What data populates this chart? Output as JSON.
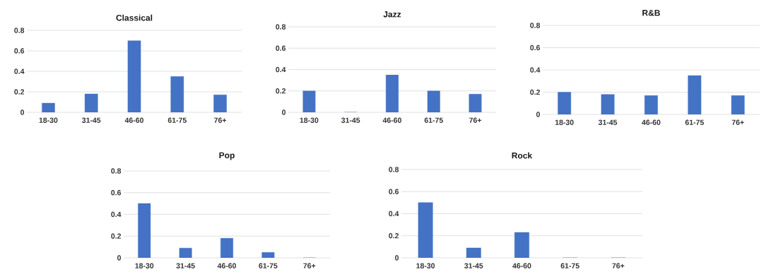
{
  "chart_data": [
    {
      "type": "bar",
      "title": "Classical",
      "categories": [
        "18-30",
        "31-45",
        "46-60",
        "61-75",
        "76+"
      ],
      "values": [
        0.09,
        0.18,
        0.7,
        0.35,
        0.17
      ],
      "color": "#4472c4",
      "ylim": [
        0,
        0.8
      ],
      "yticks": [
        0,
        0.2,
        0.4,
        0.6,
        0.8
      ],
      "grid": "y"
    },
    {
      "type": "bar",
      "title": "Jazz",
      "categories": [
        "18-30",
        "31-45",
        "46-60",
        "61-75",
        "76+"
      ],
      "values": [
        0.2,
        0,
        0.35,
        0.2,
        0.17
      ],
      "color": "#4472c4",
      "ylim": [
        0,
        0.8
      ],
      "yticks": [
        0,
        0.2,
        0.4,
        0.6,
        0.8
      ],
      "grid": "y"
    },
    {
      "type": "bar",
      "title": "R&B",
      "categories": [
        "18-30",
        "31-45",
        "46-60",
        "61-75",
        "76+"
      ],
      "values": [
        0.2,
        0.18,
        0.17,
        0.35,
        0.17
      ],
      "color": "#4472c4",
      "ylim": [
        0,
        0.8
      ],
      "yticks": [
        0,
        0.2,
        0.4,
        0.6,
        0.8
      ],
      "grid": "y"
    },
    {
      "type": "bar",
      "title": "Pop",
      "categories": [
        "18-30",
        "31-45",
        "46-60",
        "61-75",
        "76+"
      ],
      "values": [
        0.5,
        0.09,
        0.18,
        0.05,
        0
      ],
      "color": "#4472c4",
      "ylim": [
        0,
        0.8
      ],
      "yticks": [
        0,
        0.2,
        0.4,
        0.6,
        0.8
      ],
      "grid": "y"
    },
    {
      "type": "bar",
      "title": "Rock",
      "categories": [
        "18-30",
        "31-45",
        "46-60",
        "61-75",
        "76+"
      ],
      "values": [
        0.5,
        0.09,
        0.23,
        0,
        0
      ],
      "color": "#4472c4",
      "ylim": [
        0,
        0.8
      ],
      "yticks": [
        0,
        0.2,
        0.4,
        0.6,
        0.8
      ],
      "grid": "y"
    }
  ]
}
